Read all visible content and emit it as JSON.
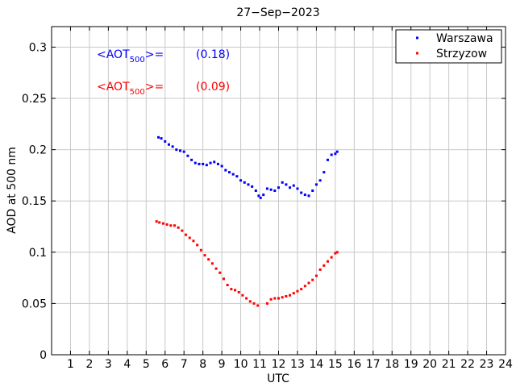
{
  "chart_data": {
    "type": "scatter",
    "title": "27−Sep−2023",
    "xlabel": "UTC",
    "ylabel": "AOD at 500 nm",
    "xlim": [
      0,
      24
    ],
    "ylim": [
      0,
      0.32
    ],
    "xticks": [
      1,
      2,
      3,
      4,
      5,
      6,
      7,
      8,
      9,
      10,
      11,
      12,
      13,
      14,
      15,
      16,
      17,
      18,
      19,
      20,
      21,
      22,
      23,
      24
    ],
    "yticks": [
      0,
      0.05,
      0.1,
      0.15,
      0.2,
      0.25,
      0.3
    ],
    "ytick_labels": [
      "0",
      "0.05",
      "0.1",
      "0.15",
      "0.2",
      "0.25",
      "0.3"
    ],
    "grid": true,
    "legend_position": "top-right",
    "series": [
      {
        "name": "Warszawa",
        "color": "#0000ff",
        "x": [
          5.65,
          5.8,
          6.0,
          6.2,
          6.4,
          6.6,
          6.8,
          7.0,
          7.2,
          7.4,
          7.6,
          7.8,
          8.0,
          8.2,
          8.4,
          8.6,
          8.8,
          9.0,
          9.2,
          9.4,
          9.6,
          9.8,
          10.0,
          10.2,
          10.4,
          10.6,
          10.8,
          10.95,
          11.05,
          11.2,
          11.4,
          11.6,
          11.8,
          12.0,
          12.2,
          12.4,
          12.6,
          12.8,
          13.0,
          13.2,
          13.4,
          13.6,
          13.8,
          14.0,
          14.2,
          14.4,
          14.6,
          14.8,
          15.0,
          15.1
        ],
        "y": [
          0.212,
          0.211,
          0.208,
          0.205,
          0.203,
          0.2,
          0.199,
          0.198,
          0.194,
          0.19,
          0.187,
          0.186,
          0.186,
          0.185,
          0.187,
          0.188,
          0.186,
          0.184,
          0.18,
          0.178,
          0.176,
          0.174,
          0.17,
          0.168,
          0.166,
          0.164,
          0.16,
          0.155,
          0.153,
          0.156,
          0.162,
          0.161,
          0.16,
          0.163,
          0.168,
          0.166,
          0.163,
          0.165,
          0.162,
          0.158,
          0.156,
          0.155,
          0.16,
          0.166,
          0.17,
          0.178,
          0.19,
          0.195,
          0.196,
          0.198
        ]
      },
      {
        "name": "Strzyzow",
        "color": "#ff0000",
        "x": [
          5.55,
          5.7,
          5.9,
          6.1,
          6.3,
          6.5,
          6.7,
          6.9,
          7.1,
          7.3,
          7.5,
          7.7,
          7.9,
          8.1,
          8.3,
          8.5,
          8.7,
          8.9,
          9.1,
          9.3,
          9.5,
          9.7,
          9.9,
          10.1,
          10.3,
          10.5,
          10.7,
          10.9,
          11.4,
          11.6,
          11.8,
          12.0,
          12.2,
          12.4,
          12.6,
          12.8,
          13.0,
          13.2,
          13.4,
          13.6,
          13.8,
          14.0,
          14.2,
          14.4,
          14.6,
          14.8,
          15.0,
          15.1
        ],
        "y": [
          0.13,
          0.129,
          0.128,
          0.127,
          0.126,
          0.126,
          0.124,
          0.121,
          0.117,
          0.114,
          0.111,
          0.107,
          0.102,
          0.097,
          0.093,
          0.089,
          0.084,
          0.08,
          0.074,
          0.068,
          0.064,
          0.063,
          0.061,
          0.058,
          0.055,
          0.052,
          0.05,
          0.048,
          0.05,
          0.054,
          0.055,
          0.055,
          0.056,
          0.057,
          0.058,
          0.06,
          0.062,
          0.064,
          0.067,
          0.07,
          0.073,
          0.077,
          0.083,
          0.087,
          0.091,
          0.095,
          0.099,
          0.1
        ]
      }
    ],
    "annotations": [
      {
        "prefix": "<AOT",
        "sub": "500",
        "suffix": ">=",
        "value": "(0.18)",
        "color": "#0000ff"
      },
      {
        "prefix": "<AOT",
        "sub": "500",
        "suffix": ">=",
        "value": "(0.09)",
        "color": "#ff0000"
      }
    ]
  }
}
